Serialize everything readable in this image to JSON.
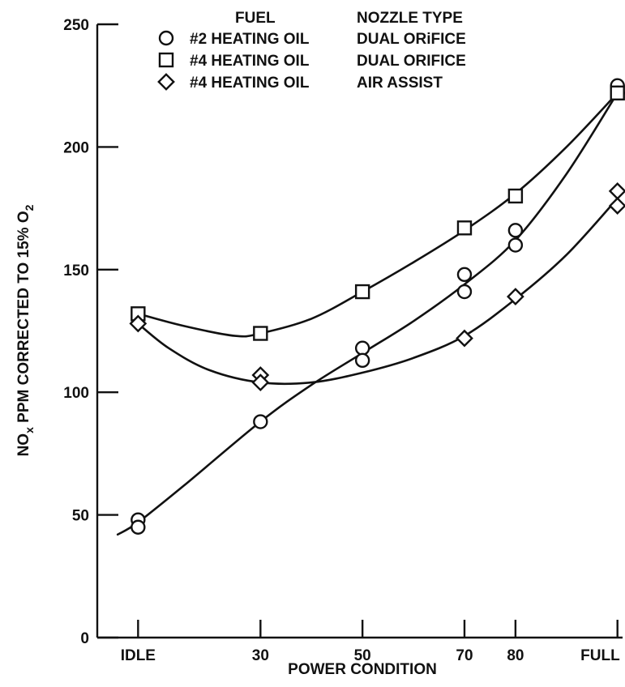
{
  "chart_data": {
    "type": "scatter",
    "title": "",
    "xlabel": "POWER CONDITION",
    "ylabel_parts": {
      "main": "NO",
      "sub": "x",
      "rest": " PPM CORRECTED TO 15% O",
      "sub2": "2"
    },
    "x_categories": [
      "IDLE",
      "30",
      "50",
      "70",
      "80",
      "FULL"
    ],
    "x_positions": [
      6,
      30,
      50,
      70,
      80,
      100
    ],
    "xlim": [
      -2,
      101
    ],
    "ylim": [
      0,
      250
    ],
    "yticks": [
      0,
      50,
      100,
      150,
      200,
      250
    ],
    "grid": false,
    "legend": {
      "placement": "top",
      "header_fuel": "FUEL",
      "header_nozzle": "NOZZLE TYPE"
    },
    "series": [
      {
        "name": "#2 HEATING OIL",
        "nozzle": "DUAL ORiFICE",
        "marker": "circle",
        "points": [
          [
            6,
            48
          ],
          [
            6,
            45
          ],
          [
            30,
            88
          ],
          [
            50,
            118
          ],
          [
            50,
            113
          ],
          [
            70,
            148
          ],
          [
            70,
            141
          ],
          [
            80,
            166
          ],
          [
            80,
            160
          ],
          [
            100,
            225
          ],
          [
            100,
            222
          ]
        ],
        "curve": [
          [
            2,
            42
          ],
          [
            6,
            47
          ],
          [
            15,
            62
          ],
          [
            30,
            88
          ],
          [
            40,
            103
          ],
          [
            50,
            116
          ],
          [
            60,
            129
          ],
          [
            70,
            144
          ],
          [
            80,
            162
          ],
          [
            90,
            189
          ],
          [
            100,
            222
          ]
        ]
      },
      {
        "name": "#4 HEATING OIL",
        "nozzle": "DUAL ORIFICE",
        "marker": "square",
        "points": [
          [
            6,
            132
          ],
          [
            30,
            124
          ],
          [
            50,
            141
          ],
          [
            70,
            167
          ],
          [
            80,
            180
          ],
          [
            100,
            222
          ]
        ],
        "curve": [
          [
            6,
            132
          ],
          [
            15,
            127
          ],
          [
            25,
            123
          ],
          [
            30,
            124
          ],
          [
            40,
            130
          ],
          [
            50,
            141
          ],
          [
            60,
            153
          ],
          [
            70,
            166
          ],
          [
            80,
            181
          ],
          [
            90,
            200
          ],
          [
            100,
            222
          ]
        ]
      },
      {
        "name": "#4 HEATING OIL",
        "nozzle": "AIR ASSIST",
        "marker": "diamond",
        "points": [
          [
            6,
            128
          ],
          [
            30,
            107
          ],
          [
            30,
            104
          ],
          [
            70,
            122
          ],
          [
            80,
            139
          ],
          [
            100,
            182
          ],
          [
            100,
            176
          ]
        ],
        "curve": [
          [
            6,
            128
          ],
          [
            12,
            118
          ],
          [
            20,
            109
          ],
          [
            30,
            104
          ],
          [
            40,
            104
          ],
          [
            50,
            108
          ],
          [
            60,
            114
          ],
          [
            70,
            123
          ],
          [
            80,
            138
          ],
          [
            90,
            156
          ],
          [
            100,
            179
          ]
        ]
      }
    ]
  }
}
